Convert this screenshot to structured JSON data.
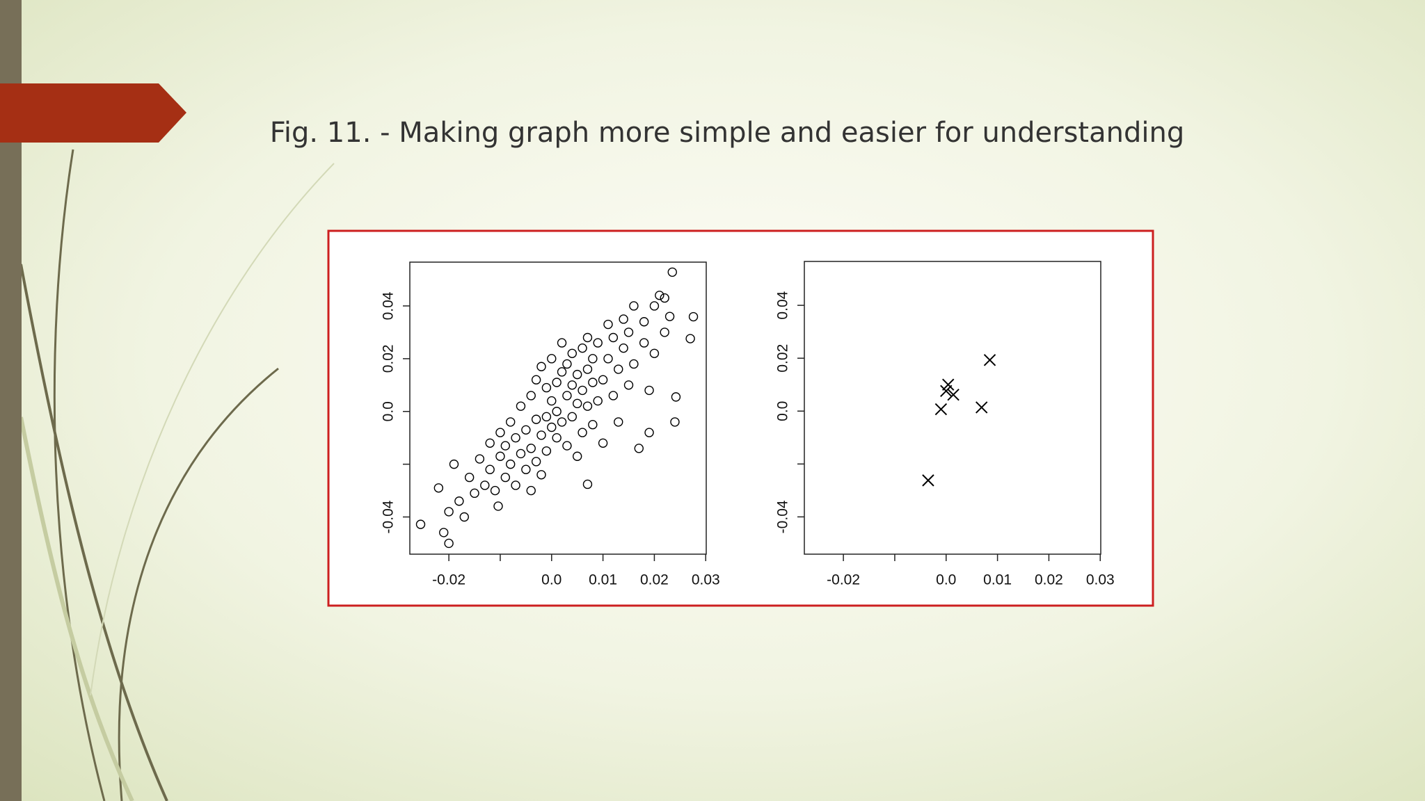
{
  "title": "Fig. 11. - Making graph more simple and easier for understanding",
  "chart_data": [
    {
      "type": "scatter",
      "marker": "circle",
      "color": "#000000",
      "x": [
        -0.018,
        -0.016,
        -0.015,
        -0.014,
        -0.013,
        -0.012,
        -0.012,
        -0.011,
        -0.01,
        -0.01,
        -0.009,
        -0.009,
        -0.008,
        -0.008,
        -0.007,
        -0.007,
        -0.006,
        -0.006,
        -0.005,
        -0.005,
        -0.004,
        -0.004,
        -0.004,
        -0.003,
        -0.003,
        -0.003,
        -0.002,
        -0.002,
        -0.002,
        -0.001,
        -0.001,
        -0.001,
        0.0,
        0.0,
        0.0,
        0.001,
        0.001,
        0.001,
        0.002,
        0.002,
        0.002,
        0.003,
        0.003,
        0.003,
        0.004,
        0.004,
        0.004,
        0.005,
        0.005,
        0.005,
        0.006,
        0.006,
        0.006,
        0.007,
        0.007,
        0.007,
        0.008,
        0.008,
        0.008,
        0.009,
        0.009,
        0.01,
        0.01,
        0.011,
        0.011,
        0.012,
        0.012,
        0.013,
        0.013,
        0.014,
        0.014,
        0.015,
        0.015,
        0.016,
        0.016,
        0.017,
        0.018,
        0.018,
        0.019,
        0.02,
        0.02,
        0.021,
        0.022,
        0.022,
        0.023,
        0.024,
        -0.022,
        -0.02,
        -0.019,
        -0.017,
        0.0235,
        -0.0255,
        -0.02,
        -0.021,
        0.0276,
        0.027,
        0.0242,
        0.019,
        0.007,
        -0.0104
      ],
      "values": [
        -0.034,
        -0.025,
        -0.031,
        -0.018,
        -0.028,
        -0.022,
        -0.012,
        -0.03,
        -0.017,
        -0.008,
        -0.025,
        -0.013,
        -0.02,
        -0.004,
        -0.028,
        -0.01,
        -0.016,
        0.002,
        -0.022,
        -0.007,
        -0.014,
        0.006,
        -0.03,
        -0.003,
        -0.019,
        0.012,
        -0.009,
        0.017,
        -0.024,
        -0.002,
        0.009,
        -0.015,
        -0.006,
        0.004,
        0.02,
        -0.01,
        0.011,
        0.0,
        -0.004,
        0.015,
        0.026,
        -0.013,
        0.006,
        0.018,
        -0.002,
        0.01,
        0.022,
        -0.017,
        0.003,
        0.014,
        0.008,
        0.024,
        -0.008,
        0.002,
        0.016,
        0.028,
        -0.005,
        0.011,
        0.02,
        0.004,
        0.026,
        0.012,
        -0.012,
        0.02,
        0.033,
        0.006,
        0.028,
        -0.004,
        0.016,
        0.024,
        0.035,
        0.01,
        0.03,
        0.018,
        0.04,
        -0.014,
        0.026,
        0.034,
        0.008,
        0.04,
        0.022,
        0.044,
        0.03,
        0.043,
        0.036,
        -0.004,
        -0.029,
        -0.038,
        -0.02,
        -0.04,
        0.0528,
        -0.0428,
        -0.05,
        -0.0459,
        0.0359,
        0.0276,
        0.0055,
        -0.008,
        -0.0276,
        -0.0359
      ],
      "xlim": [
        -0.0276,
        0.0301
      ],
      "ylim": [
        -0.0541,
        0.0566
      ],
      "xticks": [
        -0.02,
        {
          "value": -0.01,
          "label": null
        },
        {
          "value": 0,
          "label": "0.0"
        },
        0.01,
        0.02,
        0.03
      ],
      "yticks": [
        -0.04,
        {
          "value": -0.02,
          "label": null
        },
        {
          "value": 0,
          "label": "0.0"
        },
        0.02,
        0.04
      ]
    },
    {
      "type": "scatter",
      "marker": "x",
      "color": "#000000",
      "x": [
        0.0085,
        0.0004,
        0.0,
        0.0014,
        -0.001,
        0.0069,
        -0.0035
      ],
      "values": [
        0.0193,
        0.01,
        0.0076,
        0.0062,
        0.0007,
        0.0014,
        -0.0262
      ],
      "xlim": [
        -0.0276,
        0.0301
      ],
      "ylim": [
        -0.0541,
        0.0566
      ],
      "xticks": [
        -0.02,
        {
          "value": -0.01,
          "label": null
        },
        {
          "value": 0,
          "label": "0.0"
        },
        0.01,
        0.02,
        0.03
      ],
      "yticks": [
        -0.04,
        {
          "value": -0.02,
          "label": null
        },
        {
          "value": 0,
          "label": "0.0"
        },
        0.02,
        0.04
      ]
    }
  ]
}
